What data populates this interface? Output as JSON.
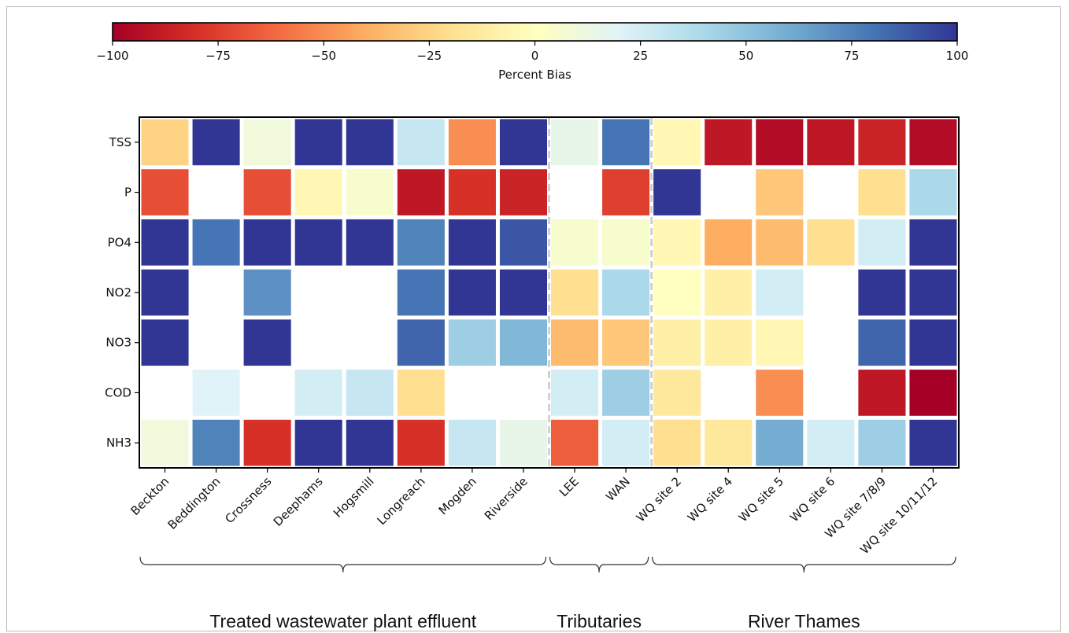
{
  "chart_data": {
    "type": "heatmap",
    "colorbar": {
      "label": "Percent Bias",
      "min": -100,
      "max": 100,
      "ticks": [
        -100,
        -75,
        -50,
        -25,
        0,
        25,
        50,
        75,
        100
      ],
      "tick_labels": [
        "−100",
        "−75",
        "−50",
        "−25",
        "0",
        "25",
        "50",
        "75",
        "100"
      ],
      "colormap": "RdYlBu"
    },
    "rows": [
      "TSS",
      "P",
      "PO4",
      "NO2",
      "NO3",
      "COD",
      "NH3"
    ],
    "columns": [
      "Beckton",
      "Beddington",
      "Crossness",
      "Deephams",
      "Hogsmill",
      "Longreach",
      "Mogden",
      "Riverside",
      "LEE",
      "WAN",
      "WQ site 2",
      "WQ site 4",
      "WQ site 5",
      "WQ site 6",
      "WQ site 7/8/9",
      "WQ site 10/11/12"
    ],
    "groups": [
      {
        "label": "Treated wastewater plant effluent",
        "start": 0,
        "end": 7
      },
      {
        "label": "Tributaries",
        "start": 8,
        "end": 9
      },
      {
        "label": "River Thames",
        "start": 10,
        "end": 15
      }
    ],
    "values": [
      [
        -25,
        100,
        10,
        100,
        100,
        30,
        -50,
        100,
        15,
        80,
        -5,
        -90,
        -95,
        -90,
        -85,
        -95
      ],
      [
        -70,
        null,
        -70,
        -5,
        5,
        -90,
        -80,
        -85,
        null,
        -75,
        100,
        null,
        -30,
        null,
        -20,
        40
      ],
      [
        100,
        80,
        100,
        100,
        100,
        75,
        100,
        90,
        5,
        5,
        -5,
        -40,
        -35,
        -20,
        25,
        100
      ],
      [
        100,
        null,
        70,
        null,
        null,
        80,
        100,
        100,
        -20,
        40,
        0,
        -10,
        25,
        null,
        100,
        100
      ],
      [
        100,
        null,
        100,
        null,
        null,
        85,
        45,
        55,
        -35,
        -30,
        -10,
        -10,
        -5,
        null,
        85,
        100
      ],
      [
        null,
        20,
        null,
        25,
        30,
        -20,
        null,
        null,
        25,
        45,
        -15,
        null,
        -50,
        null,
        -90,
        -100
      ],
      [
        10,
        75,
        -80,
        100,
        100,
        -80,
        30,
        15,
        -65,
        25,
        -20,
        -15,
        60,
        25,
        45,
        100
      ]
    ],
    "grid": false
  }
}
